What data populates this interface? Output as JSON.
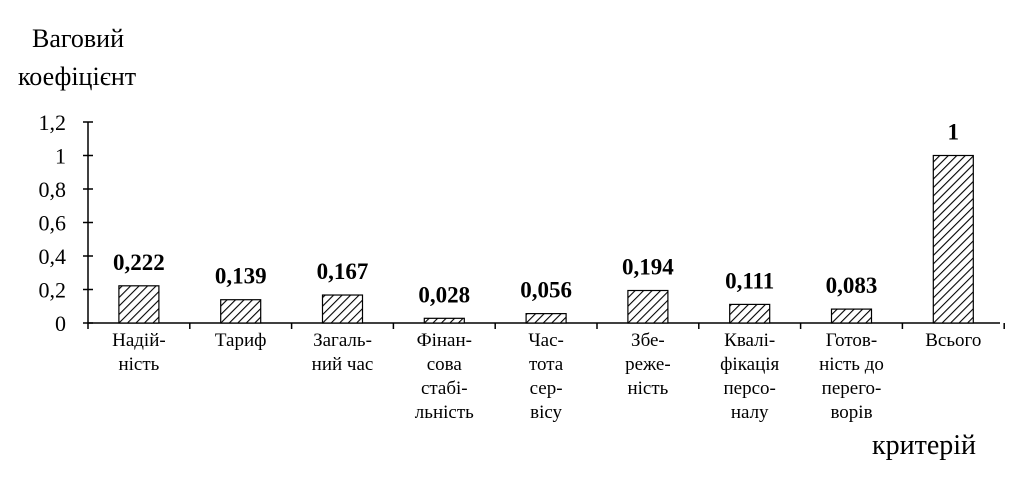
{
  "chart_data": {
    "type": "bar",
    "title": "",
    "ylabel": [
      "Ваговий",
      "коефіцієнт"
    ],
    "xlabel": "критерій",
    "ylim": [
      0,
      1.2
    ],
    "y_ticks": [
      "0",
      "0,2",
      "0,4",
      "0,6",
      "0,8",
      "1",
      "1,2"
    ],
    "categories": [
      [
        "Надій-",
        "ність"
      ],
      [
        "Тариф"
      ],
      [
        "Загаль-",
        "ний час"
      ],
      [
        "Фінан-",
        "сова",
        "стабі-",
        "льність"
      ],
      [
        "Час-",
        "тота",
        "сер-",
        "вісу"
      ],
      [
        "Збе-",
        "реже-",
        "ність"
      ],
      [
        "Квалі-",
        "фікація",
        "персо-",
        "налу"
      ],
      [
        "Готов-",
        "ність до",
        "перего-",
        "ворів"
      ],
      [
        "Всього"
      ]
    ],
    "values": [
      0.222,
      0.139,
      0.167,
      0.028,
      0.056,
      0.194,
      0.111,
      0.083,
      1
    ],
    "value_labels": [
      "0,222",
      "0,139",
      "0,167",
      "0,028",
      "0,056",
      "0,194",
      "0,111",
      "0,083",
      "1"
    ],
    "bar_pattern": "diagonal-hatch",
    "grid": false,
    "legend": "none"
  }
}
